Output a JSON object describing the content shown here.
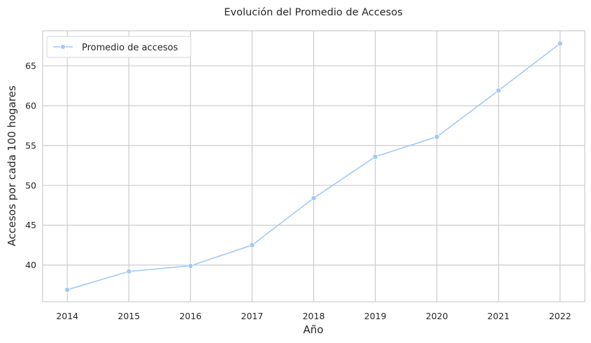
{
  "chart_data": {
    "type": "line",
    "title": "Evolución del Promedio de Accesos",
    "xlabel": "Año",
    "ylabel": "Accesos por cada 100 hogares",
    "x": [
      2014,
      2015,
      2016,
      2017,
      2018,
      2019,
      2020,
      2021,
      2022
    ],
    "x_tick_labels": [
      "2014",
      "2015",
      "2016",
      "2017",
      "2018",
      "2019",
      "2020",
      "2021",
      "2022"
    ],
    "y_ticks": [
      40,
      45,
      50,
      55,
      60,
      65
    ],
    "y_tick_labels": [
      "40",
      "45",
      "50",
      "55",
      "60",
      "65"
    ],
    "ylim": [
      35.4,
      69.4
    ],
    "xlim": [
      2013.6,
      2022.4
    ],
    "grid": true,
    "legend_position": "top-left",
    "series": [
      {
        "name": "Promedio de accesos",
        "color": "#a1c9f4",
        "marker": "circle",
        "values": [
          36.9,
          39.2,
          39.9,
          42.5,
          48.4,
          53.6,
          56.1,
          61.9,
          67.8
        ]
      }
    ]
  }
}
